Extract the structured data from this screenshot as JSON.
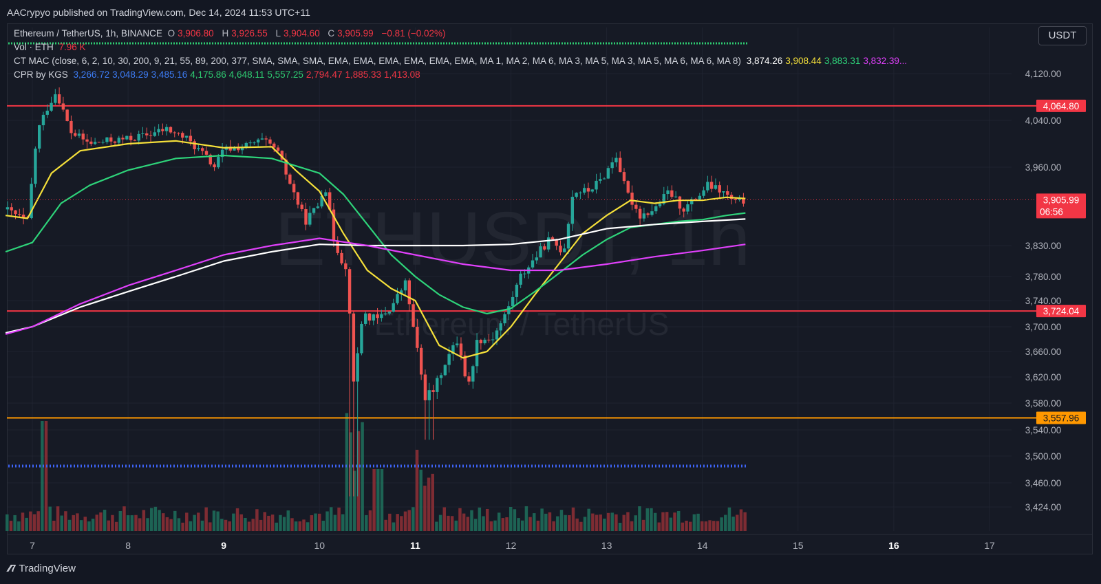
{
  "header": {
    "published": "AACrypyo published on TradingView.com, Dec 14, 2024 11:53 UTC+11"
  },
  "currency_button": "USDT",
  "legend": {
    "symbol": "Ethereum / TetherUS, 1h, BINANCE",
    "o_label": "O",
    "o_value": "3,906.80",
    "h_label": "H",
    "h_value": "3,926.55",
    "l_label": "L",
    "l_value": "3,904.60",
    "c_label": "C",
    "c_value": "3,905.99",
    "change": "−0.81 (−0.02%)",
    "vol_label": "Vol · ETH",
    "vol_value": "7.96 K",
    "ctmac_label": "CT MAC (close, 6, 2, 10, 30, 200, 9, 21, 55, 89, 200, 377, SMA, SMA, SMA, EMA, EMA, EMA, EMA, EMA, EMA, MA 1, MA 2, MA 6, MA 3, MA 5, MA 3, MA 5, MA 6, MA 6, MA 8)",
    "ctmac_values": [
      {
        "v": "3,874.26",
        "color": "#ffffff"
      },
      {
        "v": "3,908.44",
        "color": "#f5e03a"
      },
      {
        "v": "3,883.31",
        "color": "#2ed47a"
      },
      {
        "v": "3,832.39...",
        "color": "#e040fb"
      }
    ],
    "cpr_label": "CPR by KGS",
    "cpr_values": [
      {
        "v": "3,266.72",
        "color": "#3d7cf5"
      },
      {
        "v": "3,048.29",
        "color": "#3d7cf5"
      },
      {
        "v": "3,485.16",
        "color": "#3d7cf5"
      },
      {
        "v": "4,175.86",
        "color": "#2ecc71"
      },
      {
        "v": "4,648.11",
        "color": "#2ecc71"
      },
      {
        "v": "5,557.25",
        "color": "#2ecc71"
      },
      {
        "v": "2,794.47",
        "color": "#f23645"
      },
      {
        "v": "1,885.33",
        "color": "#f23645"
      },
      {
        "v": "1,413.08",
        "color": "#f23645"
      }
    ]
  },
  "chart_data": {
    "type": "candlestick",
    "watermark_symbol": "ETHUSDT, 1h",
    "watermark_name": "Ethereum / TetherUS",
    "x_ticks": [
      "7",
      "8",
      "9",
      "10",
      "11",
      "12",
      "13",
      "14",
      "15",
      "16",
      "17"
    ],
    "x_ticks_bold": [
      "9",
      "11",
      "16"
    ],
    "y_ticks": [
      4120,
      4040,
      3960,
      3830,
      3780,
      3740,
      3700,
      3660,
      3620,
      3580,
      3540,
      3500,
      3460,
      3424
    ],
    "y_tick_labels": [
      "4,120.00",
      "4,040.00",
      "3,960.00",
      "3,830.00",
      "3,780.00",
      "3,740.00",
      "3,700.00",
      "3,660.00",
      "3,620.00",
      "3,580.00",
      "3,540.00",
      "3,500.00",
      "3,460.00",
      "3,424.00"
    ],
    "horizontal_levels": [
      {
        "value": 4064.8,
        "label": "4,064.80",
        "color": "#f23645"
      },
      {
        "value": 3724.04,
        "label": "3,724.04",
        "color": "#f23645"
      },
      {
        "value": 3557.96,
        "label": "3,557.96",
        "color": "#ff9800"
      }
    ],
    "current_price": {
      "value": 3905.99,
      "label": "3,905.99",
      "countdown": "06:56",
      "color": "#f23645"
    },
    "cpr_dotted_levels": [
      {
        "value": 3485.16,
        "color": "#3d63f5"
      }
    ],
    "price_path": [
      [
        6.72,
        3890
      ],
      [
        6.95,
        3870
      ],
      [
        7.05,
        4020
      ],
      [
        7.15,
        4060
      ],
      [
        7.25,
        4090
      ],
      [
        7.4,
        4020
      ],
      [
        7.6,
        4000
      ],
      [
        7.8,
        4005
      ],
      [
        8.0,
        4008
      ],
      [
        8.2,
        4015
      ],
      [
        8.4,
        4025
      ],
      [
        8.6,
        4010
      ],
      [
        8.8,
        3980
      ],
      [
        8.9,
        3960
      ],
      [
        9.0,
        3990
      ],
      [
        9.2,
        3995
      ],
      [
        9.4,
        4005
      ],
      [
        9.55,
        3990
      ],
      [
        9.7,
        3930
      ],
      [
        9.85,
        3870
      ],
      [
        10.0,
        3900
      ],
      [
        10.05,
        3940
      ],
      [
        10.15,
        3840
      ],
      [
        10.3,
        3780
      ],
      [
        10.35,
        3600
      ],
      [
        10.45,
        3720
      ],
      [
        10.6,
        3710
      ],
      [
        10.75,
        3730
      ],
      [
        10.9,
        3770
      ],
      [
        11.0,
        3680
      ],
      [
        11.1,
        3590
      ],
      [
        11.2,
        3600
      ],
      [
        11.3,
        3640
      ],
      [
        11.45,
        3680
      ],
      [
        11.55,
        3600
      ],
      [
        11.65,
        3680
      ],
      [
        11.8,
        3680
      ],
      [
        11.95,
        3720
      ],
      [
        12.1,
        3780
      ],
      [
        12.25,
        3810
      ],
      [
        12.4,
        3840
      ],
      [
        12.55,
        3820
      ],
      [
        12.65,
        3920
      ],
      [
        12.8,
        3920
      ],
      [
        12.95,
        3940
      ],
      [
        13.1,
        3980
      ],
      [
        13.2,
        3920
      ],
      [
        13.35,
        3880
      ],
      [
        13.5,
        3890
      ],
      [
        13.65,
        3920
      ],
      [
        13.8,
        3890
      ],
      [
        13.95,
        3910
      ],
      [
        14.05,
        3930
      ],
      [
        14.2,
        3920
      ],
      [
        14.35,
        3900
      ],
      [
        14.45,
        3905.99
      ]
    ],
    "ma_series": [
      {
        "name": "MA yellow",
        "color": "#f5e03a",
        "points": [
          [
            6.72,
            3880
          ],
          [
            6.95,
            3875
          ],
          [
            7.2,
            3950
          ],
          [
            7.5,
            3988
          ],
          [
            8.0,
            4000
          ],
          [
            8.5,
            4005
          ],
          [
            9.0,
            3993
          ],
          [
            9.5,
            3995
          ],
          [
            9.75,
            3955
          ],
          [
            10.0,
            3920
          ],
          [
            10.25,
            3850
          ],
          [
            10.5,
            3790
          ],
          [
            10.75,
            3760
          ],
          [
            11.0,
            3740
          ],
          [
            11.25,
            3670
          ],
          [
            11.5,
            3650
          ],
          [
            11.75,
            3660
          ],
          [
            12.0,
            3700
          ],
          [
            12.25,
            3750
          ],
          [
            12.5,
            3800
          ],
          [
            12.75,
            3850
          ],
          [
            13.0,
            3880
          ],
          [
            13.25,
            3905
          ],
          [
            13.5,
            3900
          ],
          [
            13.75,
            3905
          ],
          [
            14.0,
            3905
          ],
          [
            14.25,
            3910
          ],
          [
            14.45,
            3908
          ]
        ]
      },
      {
        "name": "MA green",
        "color": "#2ed47a",
        "points": [
          [
            6.72,
            3820
          ],
          [
            7.0,
            3835
          ],
          [
            7.3,
            3900
          ],
          [
            7.6,
            3930
          ],
          [
            8.0,
            3955
          ],
          [
            8.5,
            3975
          ],
          [
            9.0,
            3980
          ],
          [
            9.5,
            3975
          ],
          [
            10.0,
            3950
          ],
          [
            10.25,
            3915
          ],
          [
            10.5,
            3865
          ],
          [
            10.75,
            3815
          ],
          [
            11.0,
            3780
          ],
          [
            11.25,
            3750
          ],
          [
            11.5,
            3730
          ],
          [
            11.75,
            3720
          ],
          [
            12.0,
            3728
          ],
          [
            12.25,
            3755
          ],
          [
            12.5,
            3785
          ],
          [
            12.75,
            3815
          ],
          [
            13.0,
            3840
          ],
          [
            13.25,
            3860
          ],
          [
            13.5,
            3865
          ],
          [
            13.75,
            3870
          ],
          [
            14.0,
            3873
          ],
          [
            14.25,
            3880
          ],
          [
            14.45,
            3884
          ]
        ]
      },
      {
        "name": "MA white",
        "color": "#ffffff",
        "points": [
          [
            6.72,
            3690
          ],
          [
            7.0,
            3700
          ],
          [
            7.5,
            3730
          ],
          [
            8.0,
            3755
          ],
          [
            8.5,
            3780
          ],
          [
            9.0,
            3805
          ],
          [
            9.5,
            3820
          ],
          [
            10.0,
            3832
          ],
          [
            10.5,
            3830
          ],
          [
            11.0,
            3830
          ],
          [
            11.5,
            3830
          ],
          [
            12.0,
            3832
          ],
          [
            12.5,
            3840
          ],
          [
            13.0,
            3858
          ],
          [
            13.5,
            3865
          ],
          [
            14.0,
            3870
          ],
          [
            14.45,
            3874
          ]
        ]
      },
      {
        "name": "MA magenta",
        "color": "#e040fb",
        "points": [
          [
            6.72,
            3688
          ],
          [
            7.0,
            3700
          ],
          [
            7.5,
            3735
          ],
          [
            8.0,
            3765
          ],
          [
            8.5,
            3790
          ],
          [
            9.0,
            3815
          ],
          [
            9.5,
            3830
          ],
          [
            10.0,
            3842
          ],
          [
            10.5,
            3830
          ],
          [
            11.0,
            3815
          ],
          [
            11.5,
            3800
          ],
          [
            12.0,
            3790
          ],
          [
            12.5,
            3790
          ],
          [
            13.0,
            3800
          ],
          [
            13.5,
            3812
          ],
          [
            14.0,
            3822
          ],
          [
            14.45,
            3832
          ]
        ]
      }
    ]
  },
  "footer": {
    "brand": "TradingView"
  }
}
